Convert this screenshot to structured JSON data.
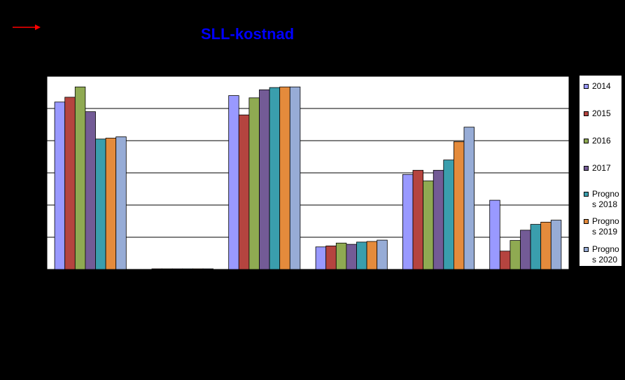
{
  "header": {
    "title": "SLL-kostnad",
    "arrow_color": "#ff0000",
    "title_color": "#0000ff"
  },
  "chart_data": {
    "type": "bar",
    "title": "SLL-kostnad",
    "xlabel": "",
    "ylabel": "",
    "ylim": [
      0,
      6
    ],
    "grid": true,
    "legend_position": "right",
    "categories": [
      "",
      "",
      "",
      "",
      "",
      ""
    ],
    "series": [
      {
        "name": "2014",
        "color": "#9999ff",
        "values": [
          5.2,
          0.0,
          5.4,
          0.7,
          2.95,
          2.15
        ]
      },
      {
        "name": "2015",
        "color": "#b5443f",
        "values": [
          5.35,
          0.02,
          4.8,
          0.73,
          3.08,
          0.57
        ]
      },
      {
        "name": "2016",
        "color": "#8faa52",
        "values": [
          5.67,
          0.02,
          5.33,
          0.82,
          2.75,
          0.9
        ]
      },
      {
        "name": "2017",
        "color": "#735b96",
        "values": [
          4.9,
          0.02,
          5.58,
          0.78,
          3.08,
          1.22
        ]
      },
      {
        "name": "Prognos 2018",
        "color": "#3a9ead",
        "values": [
          4.05,
          0.02,
          5.65,
          0.85,
          3.4,
          1.4
        ]
      },
      {
        "name": "Prognos 2019",
        "color": "#e48b3c",
        "values": [
          4.08,
          0.02,
          5.67,
          0.87,
          3.97,
          1.47
        ]
      },
      {
        "name": "Prognos 2020",
        "color": "#97acd6",
        "values": [
          4.12,
          0.02,
          5.67,
          0.91,
          4.42,
          1.53
        ]
      }
    ]
  },
  "legend": {
    "items": [
      {
        "label_1": "2014",
        "label_2": ""
      },
      {
        "label_1": "2015",
        "label_2": ""
      },
      {
        "label_1": "2016",
        "label_2": ""
      },
      {
        "label_1": "2017",
        "label_2": ""
      },
      {
        "label_1": "Progno",
        "label_2": "s 2018"
      },
      {
        "label_1": "Progno",
        "label_2": "s 2019"
      },
      {
        "label_1": "Progno",
        "label_2": "s 2020"
      }
    ]
  }
}
